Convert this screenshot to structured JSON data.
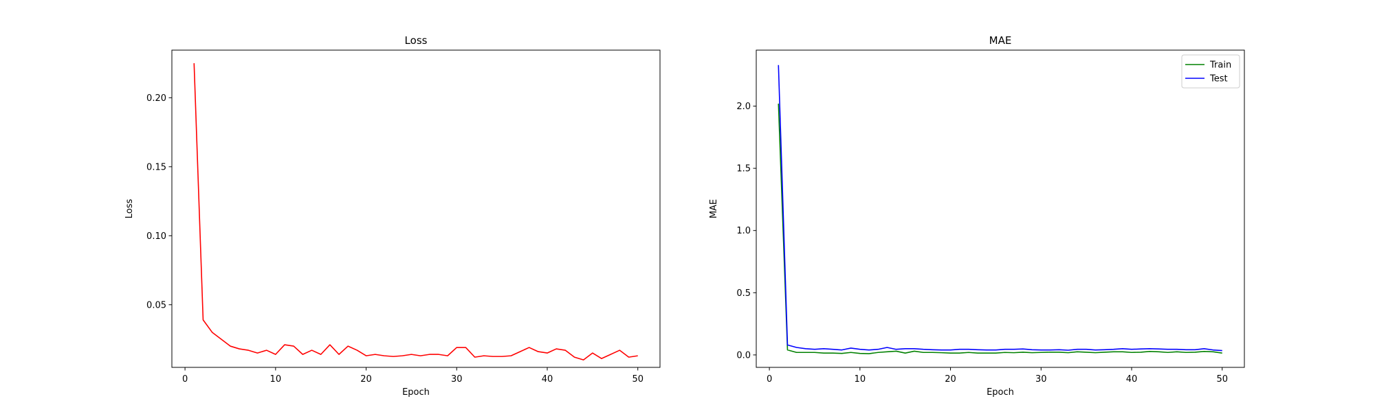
{
  "chart_data": [
    {
      "type": "line",
      "title": "Loss",
      "xlabel": "Epoch",
      "ylabel": "Loss",
      "xlim": [
        -1.45,
        52.45
      ],
      "ylim": [
        0.0046,
        0.2345
      ],
      "xticks": [
        0,
        10,
        20,
        30,
        40,
        50
      ],
      "yticks": [
        0.05,
        0.1,
        0.15,
        0.2
      ],
      "ytick_labels": [
        "0.05",
        "0.10",
        "0.15",
        "0.20"
      ],
      "grid": false,
      "legend": null,
      "x": [
        1,
        2,
        3,
        4,
        5,
        6,
        7,
        8,
        9,
        10,
        11,
        12,
        13,
        14,
        15,
        16,
        17,
        18,
        19,
        20,
        21,
        22,
        23,
        24,
        25,
        26,
        27,
        28,
        29,
        30,
        31,
        32,
        33,
        34,
        35,
        36,
        37,
        38,
        39,
        40,
        41,
        42,
        43,
        44,
        45,
        46,
        47,
        48,
        49,
        50
      ],
      "series": [
        {
          "color": "#ff0000",
          "values": [
            0.225,
            0.039,
            0.03,
            0.025,
            0.02,
            0.018,
            0.017,
            0.015,
            0.017,
            0.014,
            0.021,
            0.02,
            0.014,
            0.017,
            0.014,
            0.021,
            0.014,
            0.02,
            0.017,
            0.013,
            0.014,
            0.013,
            0.0125,
            0.013,
            0.014,
            0.013,
            0.014,
            0.014,
            0.013,
            0.019,
            0.019,
            0.012,
            0.013,
            0.0125,
            0.0125,
            0.013,
            0.016,
            0.019,
            0.016,
            0.015,
            0.018,
            0.017,
            0.012,
            0.01,
            0.015,
            0.011,
            0.014,
            0.017,
            0.012,
            0.013
          ]
        }
      ]
    },
    {
      "type": "line",
      "title": "MAE",
      "xlabel": "Epoch",
      "ylabel": "MAE",
      "xlim": [
        -1.45,
        52.45
      ],
      "ylim": [
        -0.1,
        2.45
      ],
      "xticks": [
        0,
        10,
        20,
        30,
        40,
        50
      ],
      "yticks": [
        0.0,
        0.5,
        1.0,
        1.5,
        2.0
      ],
      "ytick_labels": [
        "0.0",
        "0.5",
        "1.0",
        "1.5",
        "2.0"
      ],
      "grid": false,
      "legend": "top-right",
      "x": [
        1,
        2,
        3,
        4,
        5,
        6,
        7,
        8,
        9,
        10,
        11,
        12,
        13,
        14,
        15,
        16,
        17,
        18,
        19,
        20,
        21,
        22,
        23,
        24,
        25,
        26,
        27,
        28,
        29,
        30,
        31,
        32,
        33,
        34,
        35,
        36,
        37,
        38,
        39,
        40,
        41,
        42,
        43,
        44,
        45,
        46,
        47,
        48,
        49,
        50
      ],
      "series": [
        {
          "name": "Train",
          "color": "#008000",
          "values": [
            2.02,
            0.04,
            0.02,
            0.02,
            0.02,
            0.015,
            0.015,
            0.012,
            0.02,
            0.012,
            0.01,
            0.02,
            0.025,
            0.03,
            0.015,
            0.03,
            0.02,
            0.02,
            0.018,
            0.015,
            0.015,
            0.02,
            0.015,
            0.015,
            0.015,
            0.02,
            0.018,
            0.022,
            0.018,
            0.02,
            0.022,
            0.022,
            0.018,
            0.025,
            0.022,
            0.018,
            0.022,
            0.025,
            0.025,
            0.02,
            0.022,
            0.028,
            0.025,
            0.02,
            0.025,
            0.02,
            0.022,
            0.028,
            0.025,
            0.015
          ]
        },
        {
          "name": "Test",
          "color": "#0000ff",
          "values": [
            2.33,
            0.08,
            0.06,
            0.05,
            0.045,
            0.05,
            0.045,
            0.04,
            0.055,
            0.045,
            0.04,
            0.045,
            0.06,
            0.045,
            0.05,
            0.05,
            0.045,
            0.042,
            0.04,
            0.04,
            0.045,
            0.045,
            0.042,
            0.04,
            0.04,
            0.045,
            0.045,
            0.048,
            0.042,
            0.04,
            0.04,
            0.042,
            0.038,
            0.045,
            0.045,
            0.04,
            0.042,
            0.045,
            0.05,
            0.045,
            0.048,
            0.05,
            0.048,
            0.045,
            0.045,
            0.042,
            0.042,
            0.05,
            0.04,
            0.035
          ]
        }
      ]
    }
  ]
}
